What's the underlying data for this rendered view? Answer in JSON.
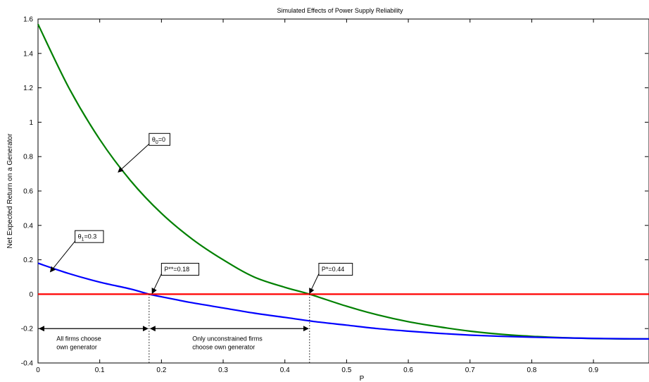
{
  "chart_data": {
    "type": "line",
    "title": "Simulated Effects of Power Supply Reliability",
    "xlabel": "P",
    "ylabel": "Net Expected Return on a Generator",
    "xlim": [
      0,
      0.99
    ],
    "ylim": [
      -0.4,
      1.6
    ],
    "xticks": [
      0,
      0.1,
      0.2,
      0.3,
      0.4,
      0.5,
      0.6,
      0.7,
      0.8,
      0.9
    ],
    "yticks": [
      -0.4,
      -0.2,
      0,
      0.2,
      0.4,
      0.6,
      0.8,
      1,
      1.2,
      1.4,
      1.6
    ],
    "xtick_labels": [
      "0",
      "0.1",
      "0.2",
      "0.3",
      "0.4",
      "0.5",
      "0.6",
      "0.7",
      "0.8",
      "0.9"
    ],
    "ytick_labels": [
      "-0.4",
      "-0.2",
      "0",
      "0.2",
      "0.4",
      "0.6",
      "0.8",
      "1",
      "1.2",
      "1.4",
      "1.6"
    ],
    "grid": false,
    "series": [
      {
        "color": "#008000",
        "x": [
          0,
          0.05,
          0.1,
          0.15,
          0.2,
          0.25,
          0.3,
          0.35,
          0.4,
          0.44,
          0.5,
          0.55,
          0.6,
          0.65,
          0.7,
          0.75,
          0.8,
          0.85,
          0.9,
          0.95,
          0.99
        ],
        "y": [
          1.57,
          1.2,
          0.9,
          0.66,
          0.47,
          0.32,
          0.2,
          0.1,
          0.04,
          0.0,
          -0.07,
          -0.12,
          -0.16,
          -0.19,
          -0.215,
          -0.233,
          -0.245,
          -0.253,
          -0.258,
          -0.26,
          -0.26
        ]
      },
      {
        "color": "#0000ff",
        "x": [
          0,
          0.05,
          0.1,
          0.15,
          0.18,
          0.2,
          0.25,
          0.3,
          0.35,
          0.4,
          0.45,
          0.5,
          0.55,
          0.6,
          0.65,
          0.7,
          0.75,
          0.8,
          0.85,
          0.9,
          0.95,
          0.99
        ],
        "y": [
          0.18,
          0.12,
          0.07,
          0.03,
          0.0,
          -0.015,
          -0.05,
          -0.08,
          -0.11,
          -0.135,
          -0.16,
          -0.18,
          -0.2,
          -0.215,
          -0.228,
          -0.238,
          -0.245,
          -0.25,
          -0.254,
          -0.257,
          -0.259,
          -0.26
        ]
      },
      {
        "color": "#ff0000",
        "x": [
          0,
          0.99
        ],
        "y": [
          0,
          0
        ]
      }
    ],
    "annotations": [
      {
        "text": "θ0=0",
        "sub": "0",
        "box": [
          0.18,
          0.9
        ],
        "arrow_to": [
          0.13,
          0.71
        ]
      },
      {
        "text": "θ1=0.3",
        "sub": "1",
        "box": [
          0.06,
          0.335
        ],
        "arrow_to": [
          0.02,
          0.13
        ]
      },
      {
        "text": "P**=0.18",
        "box": [
          0.2,
          0.145
        ],
        "arrow_to": [
          0.185,
          0.005
        ]
      },
      {
        "text": "P*=0.44",
        "box": [
          0.455,
          0.145
        ],
        "arrow_to": [
          0.44,
          0.005
        ]
      },
      {
        "text": "All firms choose\nown generator",
        "pos": [
          0.03,
          -0.27
        ]
      },
      {
        "text": "Only unconstrained firms\nchoose own generator",
        "pos": [
          0.25,
          -0.27
        ]
      }
    ],
    "vertical_markers": [
      0.18,
      0.44
    ],
    "double_arrows": [
      {
        "from": 0,
        "to": 0.18,
        "y": -0.2
      },
      {
        "from": 0.18,
        "to": 0.44,
        "y": -0.2
      }
    ]
  }
}
